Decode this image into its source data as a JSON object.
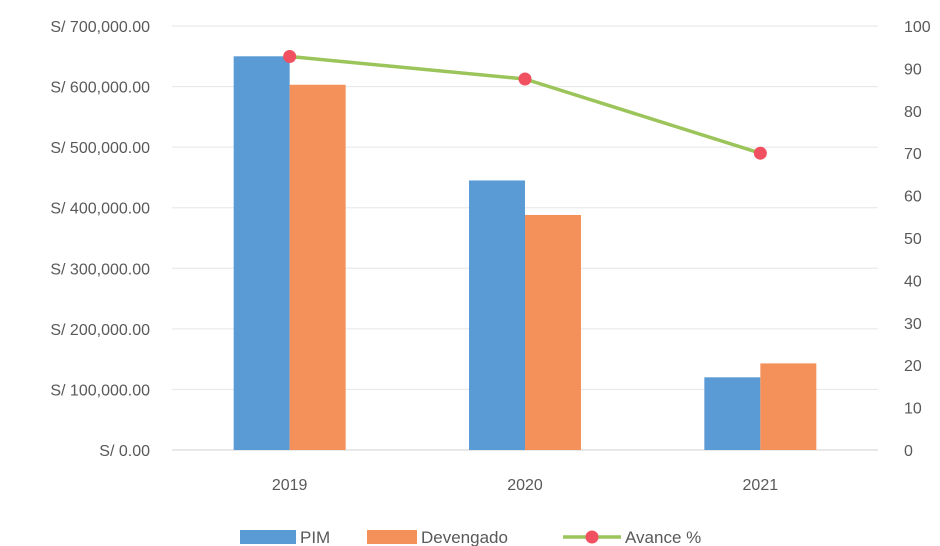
{
  "chart_data": {
    "type": "bar",
    "categories": [
      "2019",
      "2020",
      "2021"
    ],
    "series": [
      {
        "name": "PIM",
        "kind": "bar",
        "axis": "left",
        "color": "#5B9BD5",
        "values": [
          650000,
          445000,
          120000
        ]
      },
      {
        "name": "Devengado",
        "kind": "bar",
        "axis": "left",
        "color": "#F4915B",
        "values": [
          603000,
          388000,
          143000
        ]
      },
      {
        "name": "Avance %",
        "kind": "line",
        "axis": "right",
        "color": "#9BC45A",
        "marker_color": "#F0505F",
        "values": [
          92.8,
          87.5,
          70
        ]
      }
    ],
    "y_left": {
      "ylim": [
        0,
        700000
      ],
      "ticks": [
        "S/ 0.00",
        "S/ 100,000.00",
        "S/ 200,000.00",
        "S/ 300,000.00",
        "S/ 400,000.00",
        "S/ 500,000.00",
        "S/ 600,000.00",
        "S/ 700,000.00"
      ]
    },
    "y_right": {
      "ylim": [
        0,
        100
      ],
      "ticks": [
        "0",
        "10",
        "20",
        "30",
        "40",
        "50",
        "60",
        "70",
        "80",
        "90",
        "100"
      ]
    },
    "grid": true,
    "legend": "bottom"
  }
}
